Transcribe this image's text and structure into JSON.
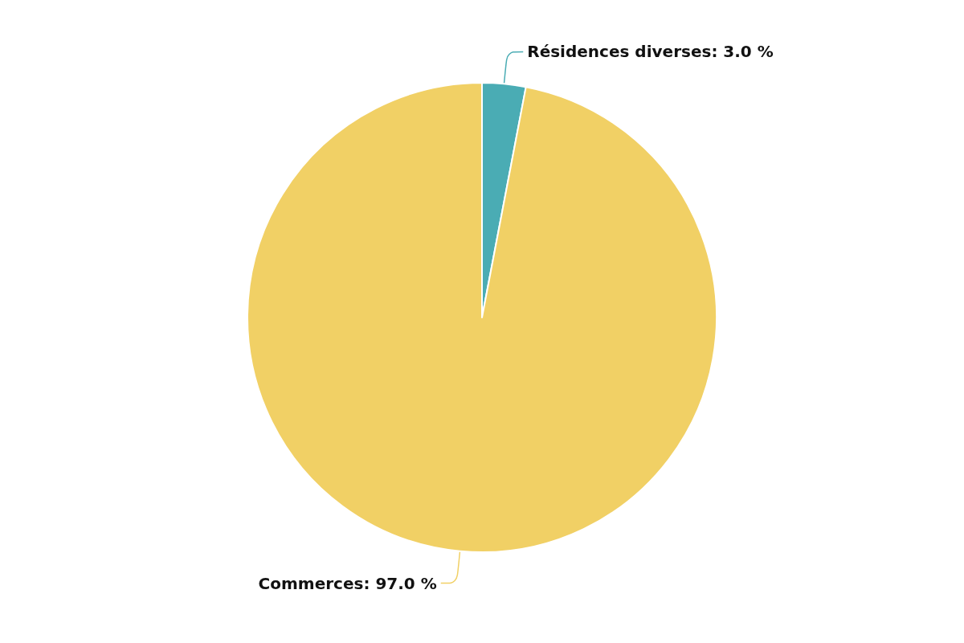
{
  "chart_data": {
    "type": "pie",
    "categories": [
      "Résidences diverses",
      "Commerces"
    ],
    "values": [
      3.0,
      97.0
    ],
    "value_labels": [
      "3.0 %",
      "97.0 %"
    ],
    "colors": [
      "#4aacb4",
      "#f1d065"
    ],
    "legend": false
  }
}
